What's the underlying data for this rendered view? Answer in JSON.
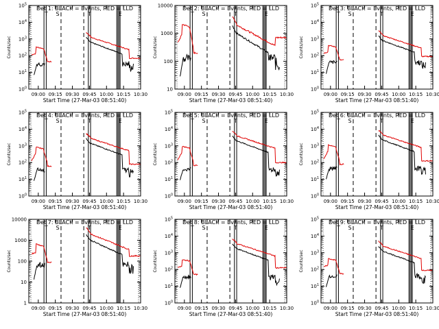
{
  "figure": {
    "ylabel": "Counts/sec",
    "xlabel": "Start Time (27-Mar-03 08:51:40)",
    "xticks": [
      "09:00",
      "09:15",
      "09:30",
      "09:45",
      "10:00",
      "10:15",
      "10:30"
    ],
    "xlim": [
      "08:51:40",
      "10:30"
    ],
    "dash_times": [
      "09:20",
      "09:40"
    ],
    "solid_pairs": [
      [
        "09:05",
        "09:07"
      ],
      [
        "09:44",
        "09:46"
      ],
      [
        "10:09",
        "10:10"
      ],
      [
        "10:11",
        "10:12"
      ]
    ],
    "markers": [
      {
        "label": "T",
        "time": "09:07"
      },
      {
        "label": "S",
        "time": "09:17"
      },
      {
        "label": "T",
        "time": "09:45"
      },
      {
        "label": "E",
        "time": "10:12"
      }
    ],
    "colors": {
      "events": "#000000",
      "lld": "#e00000"
    }
  },
  "chart_data": [
    {
      "type": "line",
      "title": "Det 1: BLACK = Events, RED = LLD",
      "yscale": "log",
      "ylim": [
        1,
        100000
      ],
      "yticks": [
        "10^0",
        "10^1",
        "10^2",
        "10^3",
        "10^4",
        "10^5"
      ],
      "series": [
        {
          "name": "Events",
          "color": "#000000"
        },
        {
          "name": "LLD",
          "color": "#e00000"
        }
      ]
    },
    {
      "type": "line",
      "title": "Det 2: BLACK = Events, RED = LLD",
      "yscale": "log",
      "ylim": [
        10,
        10000
      ],
      "yticks": [
        "10",
        "100",
        "1000",
        "10000"
      ],
      "series": [
        {
          "name": "Events",
          "color": "#000000"
        },
        {
          "name": "LLD",
          "color": "#e00000"
        }
      ]
    },
    {
      "type": "line",
      "title": "Det 3: BLACK = Events, RED = LLD",
      "yscale": "log",
      "ylim": [
        1,
        100000
      ],
      "yticks": [
        "10^0",
        "10^1",
        "10^2",
        "10^3",
        "10^4",
        "10^5"
      ],
      "series": [
        {
          "name": "Events",
          "color": "#000000"
        },
        {
          "name": "LLD",
          "color": "#e00000"
        }
      ]
    },
    {
      "type": "line",
      "title": "Det 4: BLACK = Events, RED = LLD",
      "yscale": "log",
      "ylim": [
        1,
        100000
      ],
      "yticks": [
        "10^0",
        "10^1",
        "10^2",
        "10^3",
        "10^4",
        "10^5"
      ],
      "series": [
        {
          "name": "Events",
          "color": "#000000"
        },
        {
          "name": "LLD",
          "color": "#e00000"
        }
      ]
    },
    {
      "type": "line",
      "title": "Det 5: BLACK = Events, RED = LLD",
      "yscale": "log",
      "ylim": [
        1,
        100000
      ],
      "yticks": [
        "10^0",
        "10^1",
        "10^2",
        "10^3",
        "10^4",
        "10^5"
      ],
      "series": [
        {
          "name": "Events",
          "color": "#000000"
        },
        {
          "name": "LLD",
          "color": "#e00000"
        }
      ]
    },
    {
      "type": "line",
      "title": "Det 6: BLACK = Events, RED = LLD",
      "yscale": "log",
      "ylim": [
        1,
        100000
      ],
      "yticks": [
        "10^0",
        "10^1",
        "10^2",
        "10^3",
        "10^4",
        "10^5"
      ],
      "series": [
        {
          "name": "Events",
          "color": "#000000"
        },
        {
          "name": "LLD",
          "color": "#e00000"
        }
      ]
    },
    {
      "type": "line",
      "title": "Det 7: BLACK = Events, RED = LLD",
      "yscale": "log",
      "ylim": [
        1,
        10000
      ],
      "yticks": [
        "1",
        "10",
        "100",
        "1000",
        "10000"
      ],
      "series": [
        {
          "name": "Events",
          "color": "#000000"
        },
        {
          "name": "LLD",
          "color": "#e00000"
        }
      ]
    },
    {
      "type": "line",
      "title": "Det 8: BLACK = Events, RED = LLD",
      "yscale": "log",
      "ylim": [
        1,
        100000
      ],
      "yticks": [
        "10^0",
        "10^1",
        "10^2",
        "10^3",
        "10^4",
        "10^5"
      ],
      "series": [
        {
          "name": "Events",
          "color": "#000000"
        },
        {
          "name": "LLD",
          "color": "#e00000"
        }
      ]
    },
    {
      "type": "line",
      "title": "Det 9: BLACK = Events, RED = LLD",
      "yscale": "log",
      "ylim": [
        1,
        100000
      ],
      "yticks": [
        "10^0",
        "10^1",
        "10^2",
        "10^3",
        "10^4",
        "10^5"
      ],
      "series": [
        {
          "name": "Events",
          "color": "#000000"
        },
        {
          "name": "LLD",
          "color": "#e00000"
        }
      ]
    }
  ]
}
